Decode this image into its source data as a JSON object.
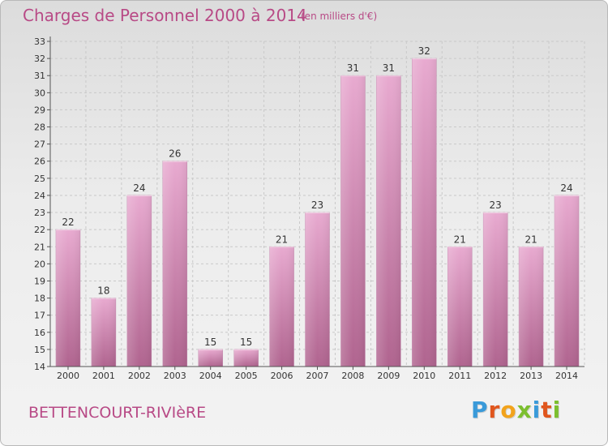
{
  "header": {
    "title": "Charges de Personnel 2000 à 2014",
    "subtitle": "(en milliers d'€)"
  },
  "footer": {
    "location": "BETTENCOURT-RIVIèRE"
  },
  "logo": {
    "text": "Proxiti",
    "letter_colors": [
      "#3a9ad9",
      "#e0561e",
      "#f2a31c",
      "#7cbf2f",
      "#3a9ad9",
      "#e0561e",
      "#7cbf2f"
    ]
  },
  "colors": {
    "bar_light": "#e8aad0",
    "bar_dark": "#b0648f",
    "accent_text": "#b84a86",
    "grid": "#c9c9c9",
    "axis": "#555555"
  },
  "chart_data": {
    "type": "bar",
    "categories": [
      "2000",
      "2001",
      "2002",
      "2003",
      "2004",
      "2005",
      "2006",
      "2007",
      "2008",
      "2009",
      "2010",
      "2011",
      "2012",
      "2013",
      "2014"
    ],
    "values": [
      22,
      18,
      24,
      26,
      15,
      15,
      21,
      23,
      31,
      31,
      32,
      21,
      23,
      21,
      24
    ],
    "ylim": [
      14,
      33
    ],
    "yticks": [
      14,
      15,
      16,
      17,
      18,
      19,
      20,
      21,
      22,
      23,
      24,
      25,
      26,
      27,
      28,
      29,
      30,
      31,
      32,
      33
    ],
    "grid": true,
    "legend": "none",
    "data_labels": true
  }
}
